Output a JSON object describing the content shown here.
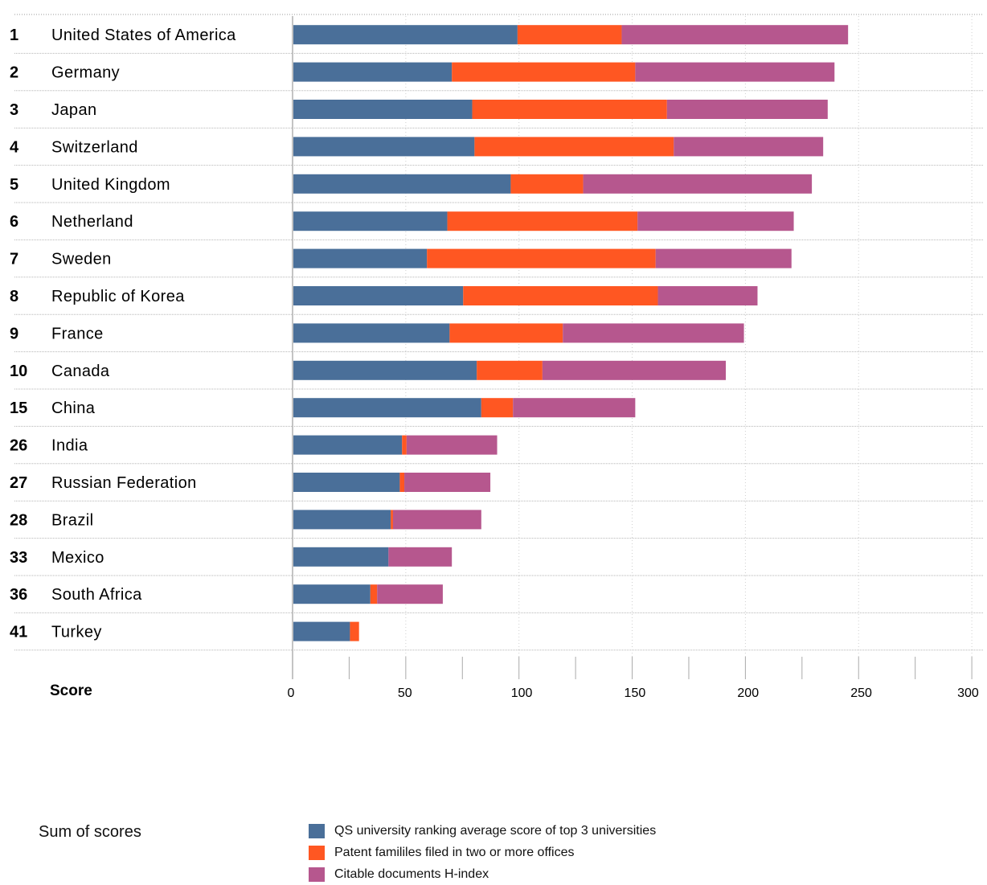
{
  "chart_data": {
    "type": "bar",
    "orientation": "horizontal",
    "stacked": true,
    "xlabel": "Score",
    "xlim": [
      0,
      300
    ],
    "xticks": [
      0,
      50,
      100,
      150,
      200,
      250,
      300
    ],
    "rows": [
      {
        "rank": "1",
        "country": "United States of America"
      },
      {
        "rank": "2",
        "country": "Germany"
      },
      {
        "rank": "3",
        "country": "Japan"
      },
      {
        "rank": "4",
        "country": "Switzerland"
      },
      {
        "rank": "5",
        "country": "United Kingdom"
      },
      {
        "rank": "6",
        "country": "Netherland"
      },
      {
        "rank": "7",
        "country": "Sweden"
      },
      {
        "rank": "8",
        "country": "Republic of Korea"
      },
      {
        "rank": "9",
        "country": "France"
      },
      {
        "rank": "10",
        "country": "Canada"
      },
      {
        "rank": "15",
        "country": "China"
      },
      {
        "rank": "26",
        "country": "India"
      },
      {
        "rank": "27",
        "country": "Russian Federation"
      },
      {
        "rank": "28",
        "country": "Brazil"
      },
      {
        "rank": "33",
        "country": "Mexico"
      },
      {
        "rank": "36",
        "country": "South Africa"
      },
      {
        "rank": "41",
        "country": "Turkey"
      }
    ],
    "series": [
      {
        "name": "QS university ranking average score of top 3 universities",
        "color": "#4a6f99",
        "values": [
          99,
          70,
          79,
          80,
          96,
          68,
          59,
          75,
          69,
          81,
          83,
          48,
          47,
          43,
          42,
          34,
          25
        ]
      },
      {
        "name": "Patent famililes filed in two or more offices",
        "color": "#ff5722",
        "values": [
          46,
          81,
          86,
          88,
          32,
          84,
          101,
          86,
          50,
          29,
          14,
          2,
          2,
          1,
          0,
          3,
          4
        ]
      },
      {
        "name": "Citable documents H-index",
        "color": "#b6578e",
        "values": [
          100,
          88,
          71,
          66,
          101,
          69,
          60,
          44,
          80,
          81,
          54,
          40,
          38,
          39,
          28,
          29,
          0
        ]
      }
    ],
    "grid": true,
    "legend": {
      "title": "Sum of scores",
      "placement": "bottom"
    }
  }
}
